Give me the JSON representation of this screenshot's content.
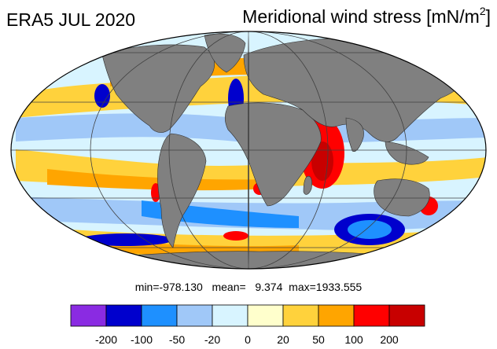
{
  "title": {
    "left": "ERA5 JUL 2020",
    "right_text": "Meridional wind stress [mN/m",
    "right_sup": "2",
    "right_close": "]"
  },
  "stats": {
    "min_label": "min=",
    "min": "-978.130",
    "mean_label": "mean=",
    "mean": "9.374",
    "max_label": "max=",
    "max": "1933.555"
  },
  "colorbar": {
    "colors": [
      "#8a2be2",
      "#0000cd",
      "#1e90ff",
      "#a0c8f8",
      "#d8f4ff",
      "#ffffcc",
      "#ffd23c",
      "#ffa500",
      "#ff0000",
      "#c80000"
    ],
    "labels": [
      "-200",
      "-100",
      "-50",
      "-20",
      "0",
      "20",
      "50",
      "100",
      "200"
    ]
  },
  "map": {
    "projection": "mollweide",
    "ocean_color": "#d8f4ff",
    "land_color": "#808080",
    "grid": true
  }
}
